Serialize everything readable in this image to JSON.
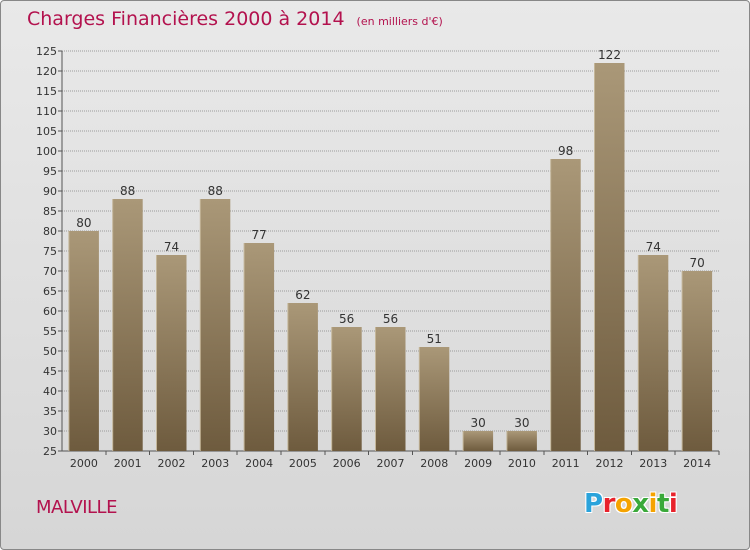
{
  "header": {
    "title": "Charges Financières 2000 à 2014",
    "subtitle": "(en milliers d'€)"
  },
  "footer": {
    "town": "MALVILLE",
    "logo_text": "Proxiti",
    "logo_colors": [
      "#2aa3db",
      "#e8222b",
      "#f5a300",
      "#3aa93a",
      "#f5a300",
      "#3aa93a",
      "#e8222b"
    ]
  },
  "colors": {
    "title": "#b3124e",
    "bar_top": "#aa9878",
    "bar_bottom": "#6e5b3e",
    "grid": "#9b9b9b",
    "text": "#333333"
  },
  "chart_data": {
    "type": "bar",
    "title": "Charges Financières 2000 à 2014",
    "subtitle": "(en milliers d'€)",
    "categories": [
      "2000",
      "2001",
      "2002",
      "2003",
      "2004",
      "2005",
      "2006",
      "2007",
      "2008",
      "2009",
      "2010",
      "2011",
      "2012",
      "2013",
      "2014"
    ],
    "values": [
      80,
      88,
      74,
      88,
      77,
      62,
      56,
      56,
      51,
      30,
      30,
      98,
      122,
      74,
      70
    ],
    "xlabel": "",
    "ylabel": "",
    "ylim": [
      25,
      125
    ],
    "yticks": [
      25,
      30,
      35,
      40,
      45,
      50,
      55,
      60,
      65,
      70,
      75,
      80,
      85,
      90,
      95,
      100,
      105,
      110,
      115,
      120,
      125
    ],
    "grid": true
  }
}
